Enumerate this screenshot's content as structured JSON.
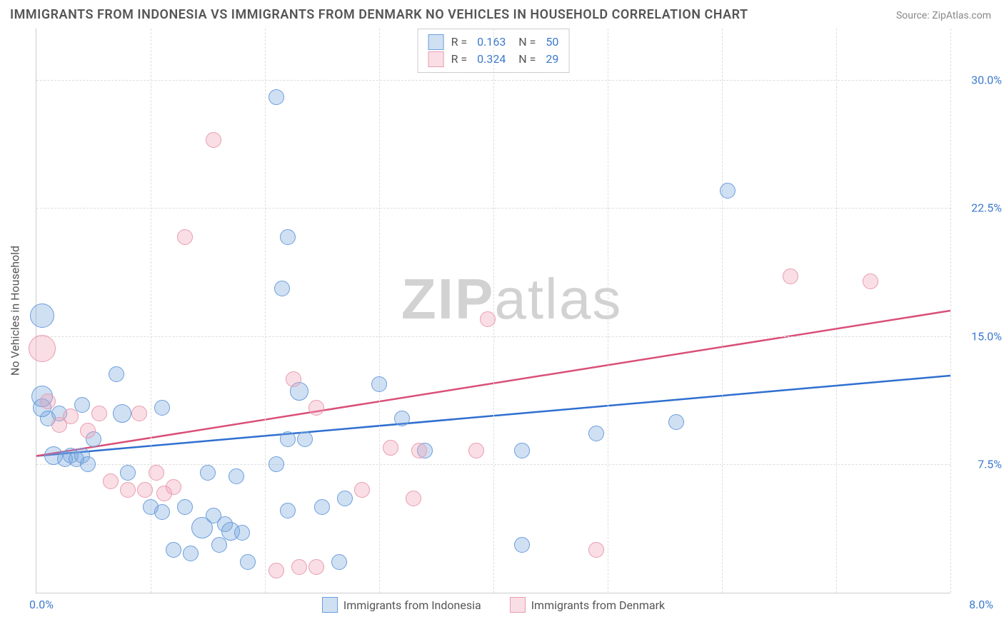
{
  "title": "IMMIGRANTS FROM INDONESIA VS IMMIGRANTS FROM DENMARK NO VEHICLES IN HOUSEHOLD CORRELATION CHART",
  "source": "Source: ZipAtlas.com",
  "watermark_bold": "ZIP",
  "watermark_rest": "atlas",
  "ylabel": "No Vehicles in Household",
  "chart": {
    "type": "scatter",
    "x_range": [
      0.0,
      8.0
    ],
    "y_range": [
      0.0,
      33.0
    ],
    "y_ticks": [
      7.5,
      15.0,
      22.5,
      30.0
    ],
    "y_tick_labels": [
      "7.5%",
      "15.0%",
      "22.5%",
      "30.0%"
    ],
    "x_tick_left": "0.0%",
    "x_tick_right": "8.0%",
    "x_grid_step": 1.0,
    "background": "#ffffff",
    "grid_color": "#dddddd",
    "axis_color": "#cccccc",
    "tick_color": "#3b7acc",
    "label_color": "#555555"
  },
  "series": [
    {
      "name": "Immigrants from Indonesia",
      "fill": "rgba(120,165,220,0.35)",
      "stroke": "#6a9edc",
      "trend_color": "#2f6fd0",
      "R": "0.163",
      "N": "50",
      "trend": {
        "x1": 0.0,
        "y1": 8.0,
        "x2": 8.0,
        "y2": 12.7
      },
      "points": [
        {
          "x": 0.05,
          "y": 16.2,
          "r": 16
        },
        {
          "x": 0.05,
          "y": 11.5,
          "r": 14
        },
        {
          "x": 0.05,
          "y": 10.8,
          "r": 12
        },
        {
          "x": 0.1,
          "y": 10.2,
          "r": 10
        },
        {
          "x": 0.15,
          "y": 8.0,
          "r": 12
        },
        {
          "x": 0.2,
          "y": 10.5,
          "r": 10
        },
        {
          "x": 0.25,
          "y": 7.8,
          "r": 10
        },
        {
          "x": 0.3,
          "y": 8.0,
          "r": 10
        },
        {
          "x": 0.35,
          "y": 7.8,
          "r": 10
        },
        {
          "x": 0.4,
          "y": 11.0,
          "r": 10
        },
        {
          "x": 0.4,
          "y": 8.0,
          "r": 10
        },
        {
          "x": 0.45,
          "y": 7.5,
          "r": 10
        },
        {
          "x": 0.5,
          "y": 9.0,
          "r": 10
        },
        {
          "x": 0.7,
          "y": 12.8,
          "r": 10
        },
        {
          "x": 0.75,
          "y": 10.5,
          "r": 12
        },
        {
          "x": 0.8,
          "y": 7.0,
          "r": 10
        },
        {
          "x": 1.1,
          "y": 10.8,
          "r": 10
        },
        {
          "x": 1.0,
          "y": 5.0,
          "r": 10
        },
        {
          "x": 1.1,
          "y": 4.7,
          "r": 10
        },
        {
          "x": 1.2,
          "y": 2.5,
          "r": 10
        },
        {
          "x": 1.3,
          "y": 5.0,
          "r": 10
        },
        {
          "x": 1.35,
          "y": 2.3,
          "r": 10
        },
        {
          "x": 1.45,
          "y": 3.8,
          "r": 14
        },
        {
          "x": 1.5,
          "y": 7.0,
          "r": 10
        },
        {
          "x": 1.55,
          "y": 4.5,
          "r": 10
        },
        {
          "x": 1.6,
          "y": 2.8,
          "r": 10
        },
        {
          "x": 1.65,
          "y": 4.0,
          "r": 10
        },
        {
          "x": 1.75,
          "y": 6.8,
          "r": 10
        },
        {
          "x": 1.7,
          "y": 3.6,
          "r": 12
        },
        {
          "x": 1.8,
          "y": 3.5,
          "r": 10
        },
        {
          "x": 1.85,
          "y": 1.8,
          "r": 10
        },
        {
          "x": 2.1,
          "y": 29.0,
          "r": 10
        },
        {
          "x": 2.2,
          "y": 20.8,
          "r": 10
        },
        {
          "x": 2.15,
          "y": 17.8,
          "r": 10
        },
        {
          "x": 2.1,
          "y": 7.5,
          "r": 10
        },
        {
          "x": 2.2,
          "y": 4.8,
          "r": 10
        },
        {
          "x": 2.2,
          "y": 9.0,
          "r": 10
        },
        {
          "x": 2.3,
          "y": 11.8,
          "r": 12
        },
        {
          "x": 2.35,
          "y": 9.0,
          "r": 10
        },
        {
          "x": 2.5,
          "y": 5.0,
          "r": 10
        },
        {
          "x": 2.65,
          "y": 1.8,
          "r": 10
        },
        {
          "x": 2.7,
          "y": 5.5,
          "r": 10
        },
        {
          "x": 3.0,
          "y": 12.2,
          "r": 10
        },
        {
          "x": 3.2,
          "y": 10.2,
          "r": 10
        },
        {
          "x": 3.4,
          "y": 8.3,
          "r": 10
        },
        {
          "x": 4.25,
          "y": 2.8,
          "r": 10
        },
        {
          "x": 4.25,
          "y": 8.3,
          "r": 10
        },
        {
          "x": 4.9,
          "y": 9.3,
          "r": 10
        },
        {
          "x": 5.6,
          "y": 10.0,
          "r": 10
        },
        {
          "x": 6.05,
          "y": 23.5,
          "r": 10
        }
      ]
    },
    {
      "name": "Immigrants from Denmark",
      "fill": "rgba(240,160,180,0.35)",
      "stroke": "#e89cb0",
      "trend_color": "#d94f78",
      "R": "0.324",
      "N": "29",
      "trend": {
        "x1": 0.0,
        "y1": 8.0,
        "x2": 8.0,
        "y2": 16.5
      },
      "points": [
        {
          "x": 0.05,
          "y": 14.3,
          "r": 18
        },
        {
          "x": 0.1,
          "y": 11.2,
          "r": 10
        },
        {
          "x": 0.2,
          "y": 9.8,
          "r": 10
        },
        {
          "x": 0.3,
          "y": 10.3,
          "r": 10
        },
        {
          "x": 0.45,
          "y": 9.5,
          "r": 10
        },
        {
          "x": 0.55,
          "y": 10.5,
          "r": 10
        },
        {
          "x": 0.65,
          "y": 6.5,
          "r": 10
        },
        {
          "x": 0.8,
          "y": 6.0,
          "r": 10
        },
        {
          "x": 0.9,
          "y": 10.5,
          "r": 10
        },
        {
          "x": 0.95,
          "y": 6.0,
          "r": 10
        },
        {
          "x": 1.05,
          "y": 7.0,
          "r": 10
        },
        {
          "x": 1.12,
          "y": 5.8,
          "r": 10
        },
        {
          "x": 1.2,
          "y": 6.2,
          "r": 10
        },
        {
          "x": 1.3,
          "y": 20.8,
          "r": 10
        },
        {
          "x": 1.55,
          "y": 26.5,
          "r": 10
        },
        {
          "x": 2.1,
          "y": 1.3,
          "r": 10
        },
        {
          "x": 2.25,
          "y": 12.5,
          "r": 10
        },
        {
          "x": 2.3,
          "y": 1.5,
          "r": 10
        },
        {
          "x": 2.45,
          "y": 10.8,
          "r": 10
        },
        {
          "x": 2.45,
          "y": 1.5,
          "r": 10
        },
        {
          "x": 2.85,
          "y": 6.0,
          "r": 10
        },
        {
          "x": 3.1,
          "y": 8.5,
          "r": 10
        },
        {
          "x": 3.35,
          "y": 8.3,
          "r": 10
        },
        {
          "x": 3.3,
          "y": 5.5,
          "r": 10
        },
        {
          "x": 3.85,
          "y": 8.3,
          "r": 10
        },
        {
          "x": 3.95,
          "y": 16.0,
          "r": 10
        },
        {
          "x": 4.9,
          "y": 2.5,
          "r": 10
        },
        {
          "x": 6.6,
          "y": 18.5,
          "r": 10
        },
        {
          "x": 7.3,
          "y": 18.2,
          "r": 10
        }
      ]
    }
  ],
  "bottom_legend": [
    {
      "label": "Immigrants from Indonesia",
      "fill": "rgba(120,165,220,0.35)",
      "stroke": "#6a9edc"
    },
    {
      "label": "Immigrants from Denmark",
      "fill": "rgba(240,160,180,0.35)",
      "stroke": "#e89cb0"
    }
  ]
}
